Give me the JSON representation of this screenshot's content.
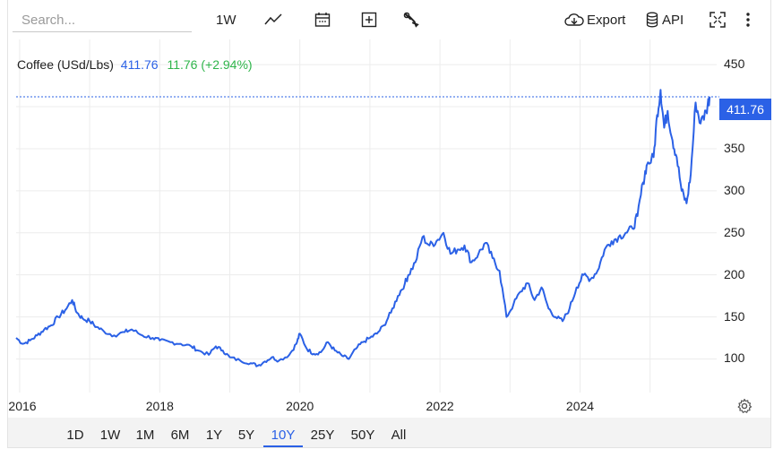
{
  "toolbar": {
    "search_placeholder": "Search...",
    "interval_label": "1W",
    "export_label": "Export",
    "api_label": "API"
  },
  "legend": {
    "name": "Coffee (USd/Lbs)",
    "price": "411.76",
    "change": "11.76 (+2.94%)",
    "colors": {
      "price": "#2b61e6",
      "change": "#2fb54b"
    }
  },
  "price_tag": "411.76",
  "ranges": [
    "1D",
    "1W",
    "1M",
    "6M",
    "1Y",
    "5Y",
    "10Y",
    "25Y",
    "50Y",
    "All"
  ],
  "active_range": "10Y",
  "colors": {
    "line": "#2b61e6",
    "grid": "#ececec",
    "accent": "#2b61e6"
  },
  "icons": [
    "line-chart-icon",
    "calendar-icon",
    "add-indicator-icon",
    "wrench-icon",
    "cloud-download-icon",
    "database-icon",
    "fullscreen-icon",
    "more-vert-icon",
    "gear-icon"
  ],
  "chart_data": {
    "type": "line",
    "series": [
      {
        "name": "Coffee (USd/Lbs)"
      }
    ],
    "ylim": [
      60,
      480
    ],
    "yticks": [
      100,
      150,
      200,
      250,
      300,
      350,
      450
    ],
    "xlim": [
      2015.95,
      2025.95
    ],
    "xticks": [
      "2016",
      "2018",
      "2020",
      "2022",
      "2024"
    ],
    "grid": true,
    "last_value": 411.76,
    "x": [
      2015.95,
      2016.05,
      2016.15,
      2016.25,
      2016.35,
      2016.45,
      2016.55,
      2016.65,
      2016.75,
      2016.82,
      2016.9,
      2017.0,
      2017.1,
      2017.2,
      2017.35,
      2017.5,
      2017.6,
      2017.75,
      2017.9,
      2018.0,
      2018.15,
      2018.3,
      2018.45,
      2018.55,
      2018.7,
      2018.8,
      2018.9,
      2019.0,
      2019.15,
      2019.3,
      2019.4,
      2019.5,
      2019.6,
      2019.7,
      2019.85,
      2019.95,
      2020.0,
      2020.1,
      2020.2,
      2020.3,
      2020.4,
      2020.5,
      2020.6,
      2020.7,
      2020.8,
      2020.9,
      2021.0,
      2021.1,
      2021.2,
      2021.3,
      2021.4,
      2021.5,
      2021.55,
      2021.65,
      2021.75,
      2021.85,
      2021.95,
      2022.05,
      2022.15,
      2022.25,
      2022.35,
      2022.45,
      2022.55,
      2022.65,
      2022.75,
      2022.85,
      2022.95,
      2023.05,
      2023.15,
      2023.25,
      2023.35,
      2023.45,
      2023.55,
      2023.65,
      2023.75,
      2023.85,
      2023.95,
      2024.05,
      2024.15,
      2024.25,
      2024.35,
      2024.45,
      2024.55,
      2024.65,
      2024.75,
      2024.82,
      2024.9,
      2024.95,
      2025.05,
      2025.1,
      2025.15,
      2025.2,
      2025.25,
      2025.32,
      2025.38,
      2025.45,
      2025.52,
      2025.58,
      2025.65,
      2025.72,
      2025.8,
      2025.85
    ],
    "y": [
      125,
      118,
      122,
      128,
      135,
      140,
      150,
      158,
      170,
      155,
      148,
      145,
      138,
      133,
      128,
      132,
      135,
      128,
      125,
      122,
      120,
      118,
      115,
      110,
      105,
      115,
      110,
      102,
      98,
      95,
      92,
      97,
      102,
      98,
      105,
      118,
      130,
      112,
      106,
      108,
      120,
      110,
      104,
      100,
      112,
      120,
      125,
      130,
      140,
      155,
      175,
      190,
      200,
      215,
      245,
      235,
      240,
      250,
      225,
      230,
      235,
      215,
      225,
      238,
      220,
      205,
      150,
      165,
      180,
      190,
      170,
      185,
      160,
      150,
      145,
      160,
      185,
      200,
      195,
      205,
      230,
      240,
      245,
      250,
      255,
      270,
      310,
      330,
      340,
      390,
      420,
      375,
      395,
      360,
      340,
      300,
      285,
      320,
      405,
      380,
      395,
      412
    ]
  }
}
